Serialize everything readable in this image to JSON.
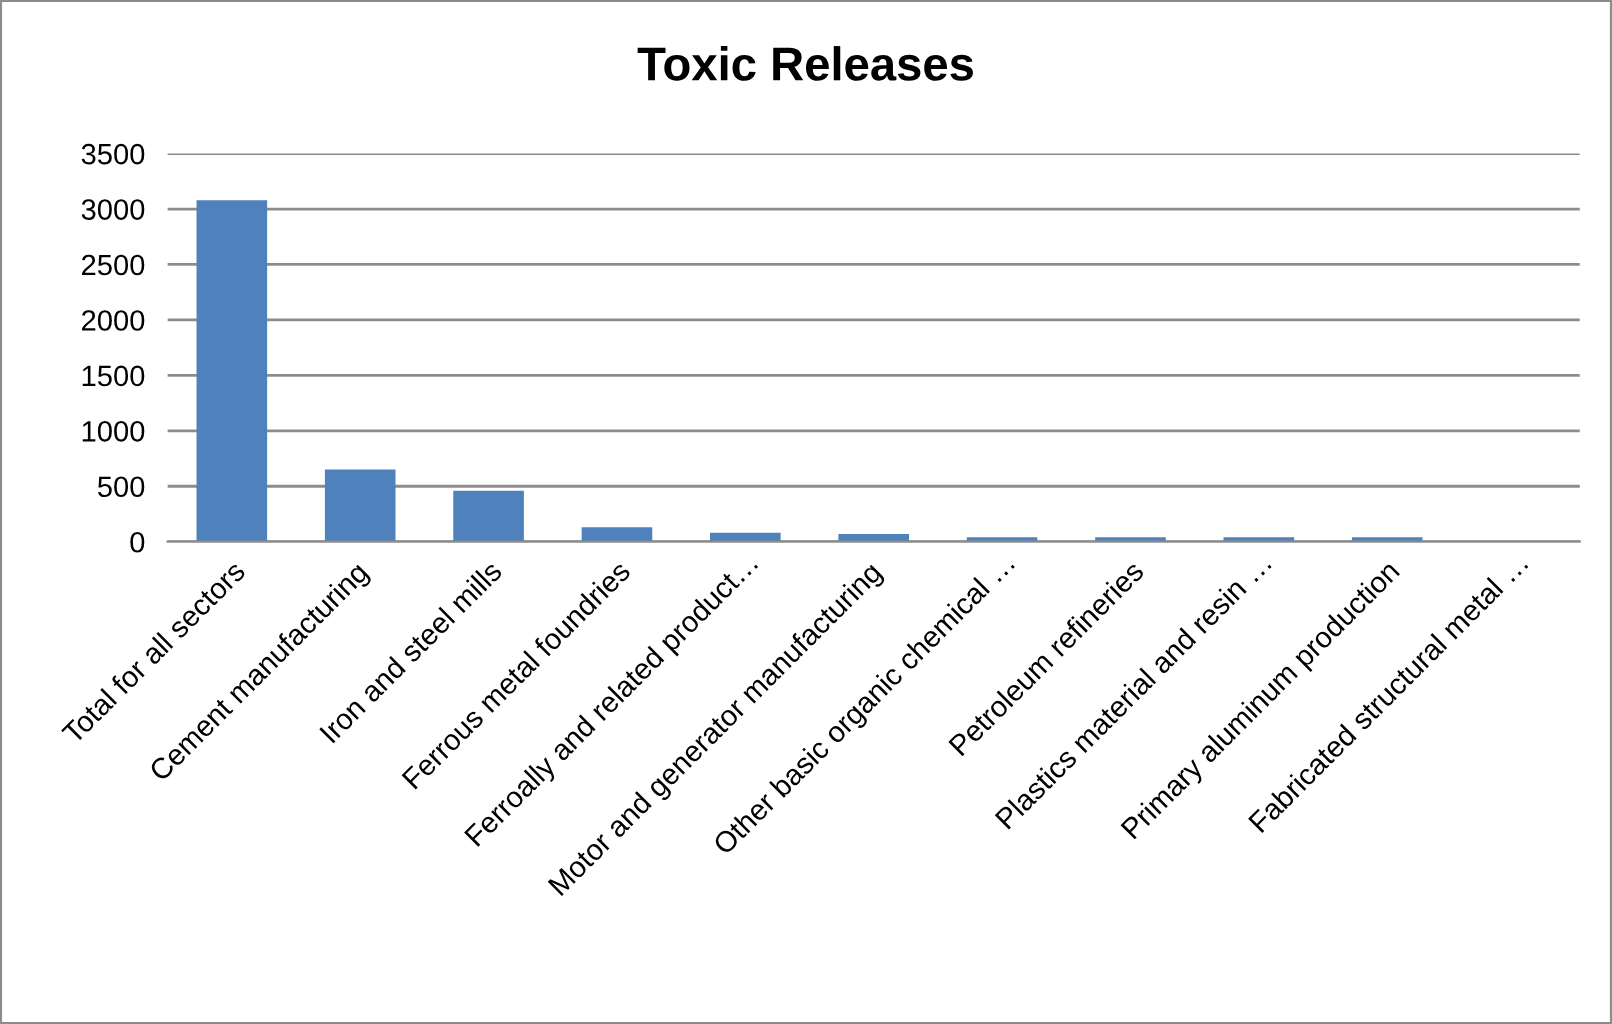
{
  "chart_data": {
    "type": "bar",
    "title": "Toxic Releases",
    "categories": [
      "Total for all sectors",
      "Cement manufacturing",
      "Iron and steel mills",
      "Ferrous metal foundries",
      "Ferroally and related product…",
      "Motor and generator manufacturing",
      "Other basic organic chemical …",
      "Petroleum refineries",
      "Plastics material and resin …",
      "Primary aluminum production",
      "Fabricated structural metal …"
    ],
    "values": [
      3080,
      650,
      460,
      130,
      80,
      70,
      40,
      40,
      40,
      40,
      0
    ],
    "color": "#4f81bd",
    "ylim": [
      0,
      3500
    ],
    "yticks": [
      0,
      500,
      1000,
      1500,
      2000,
      2500,
      3000,
      3500
    ],
    "grid": "y"
  }
}
